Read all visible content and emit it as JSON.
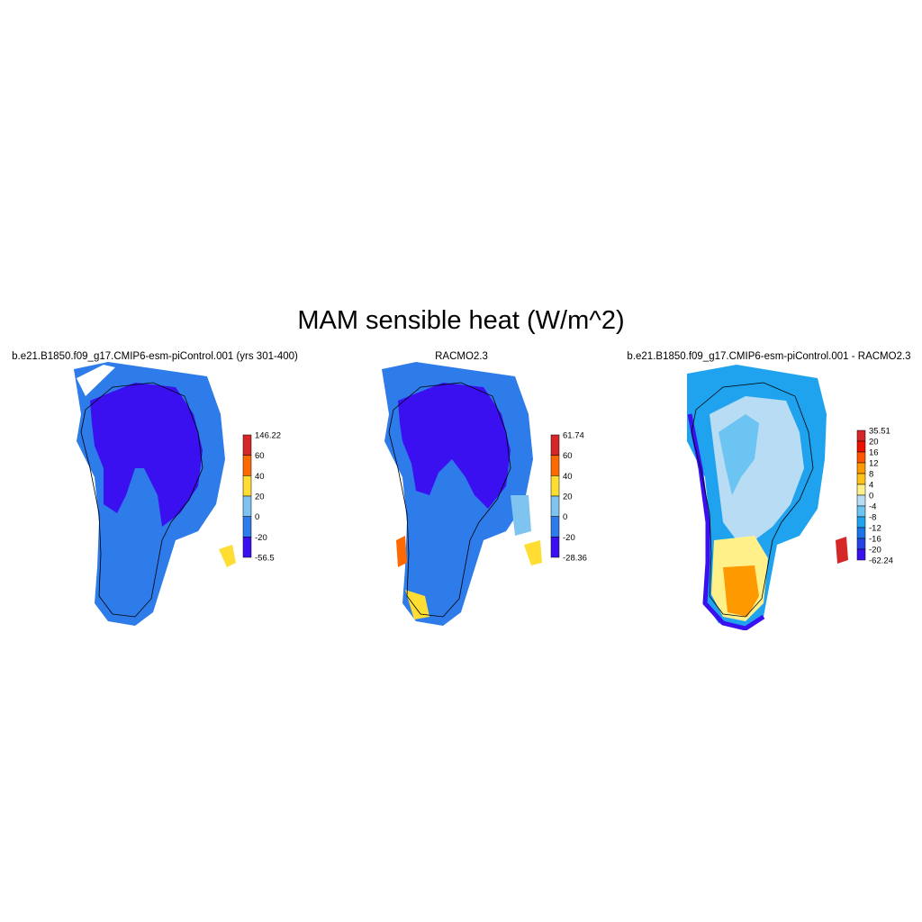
{
  "title": "MAM sensible heat (W/m^2)",
  "panels": [
    {
      "title": "b.e21.B1850.f09_g17.CMIP6-esm-piControl.001 (yrs 301-400)",
      "colorbar": {
        "labels": [
          "146.22",
          "60",
          "40",
          "20",
          "0",
          "-20",
          "-56.5"
        ],
        "colors": [
          "#d62728",
          "#ff6a00",
          "#ffdd33",
          "#7fc4f0",
          "#2e7bea",
          "#3a10f0"
        ]
      }
    },
    {
      "title": "RACMO2.3",
      "colorbar": {
        "labels": [
          "61.74",
          "60",
          "40",
          "20",
          "0",
          "-20",
          "-28.36"
        ],
        "colors": [
          "#d62728",
          "#ff6a00",
          "#ffdd33",
          "#7fc4f0",
          "#2e7bea",
          "#3a10f0"
        ]
      }
    },
    {
      "title": "b.e21.B1850.f09_g17.CMIP6-esm-piControl.001 - RACMO2.3",
      "colorbar": {
        "labels": [
          "35.51",
          "20",
          "16",
          "12",
          "8",
          "4",
          "0",
          "-4",
          "-8",
          "-12",
          "-16",
          "-20",
          "-62.24"
        ],
        "colors": [
          "#d62728",
          "#ee1100",
          "#ff5500",
          "#ff9900",
          "#ffc21a",
          "#fff08a",
          "#b8dcf3",
          "#6cc4f2",
          "#1fa3ef",
          "#1c74e8",
          "#2545e6",
          "#3a10f0"
        ]
      }
    }
  ]
}
